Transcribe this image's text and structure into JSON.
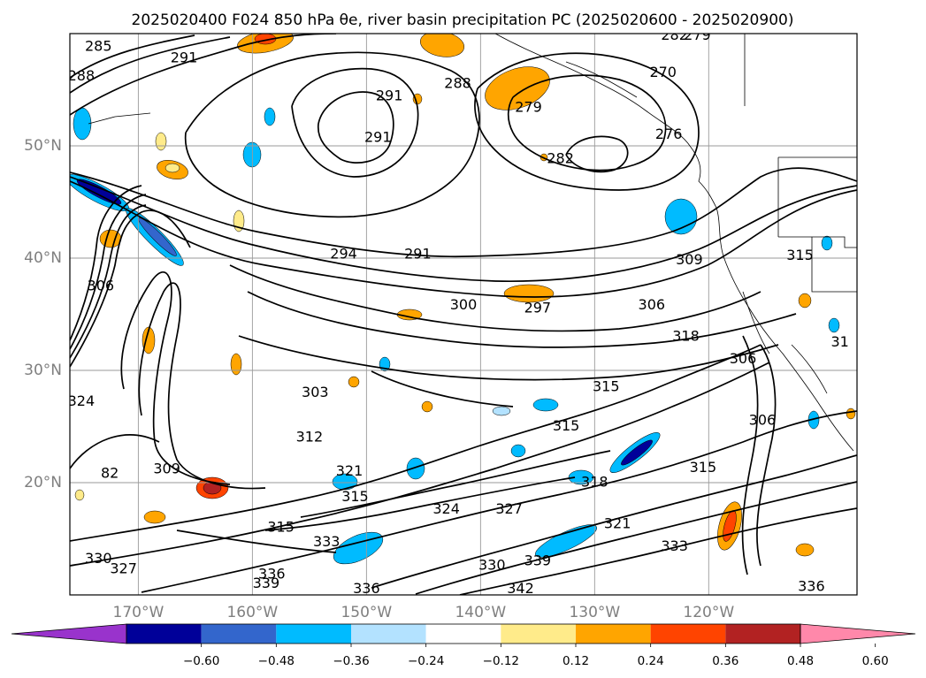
{
  "figure": {
    "title": "2025020400 F024 850 hPa θe, river basin precipitation PC (2025020600 - 2025020900)"
  },
  "chart_data": {
    "type": "contour_map",
    "title": "2025020400 F024 850 hPa θe, river basin precipitation PC (2025020600 - 2025020900)",
    "lat_labels": [
      "20°N",
      "30°N",
      "40°N",
      "50°N"
    ],
    "lon_labels": [
      "170°W",
      "160°W",
      "150°W",
      "140°W",
      "130°W",
      "120°W"
    ],
    "lat_values": [
      20,
      30,
      40,
      50
    ],
    "lon_values": [
      -170,
      -160,
      -150,
      -140,
      -130,
      -120
    ],
    "extent": {
      "lon": [
        -176,
        -107
      ],
      "lat": [
        10,
        60
      ]
    },
    "grid": true,
    "colorbar": {
      "orientation": "horizontal",
      "extend": "both",
      "levels": [
        -0.6,
        -0.48,
        -0.36,
        -0.24,
        -0.12,
        0.12,
        0.24,
        0.36,
        0.48,
        0.6
      ],
      "tick_labels": [
        "−0.60",
        "−0.48",
        "−0.36",
        "−0.24",
        "−0.12",
        "0.12",
        "0.24",
        "0.36",
        "0.48",
        "0.60"
      ],
      "colors": [
        "#9933cc",
        "#000099",
        "#3366cc",
        "#00bbff",
        "#b3e2ff",
        "#ffffff",
        "#ffeb8a",
        "#ffa500",
        "#ff4400",
        "#b22222",
        "#ff88aa"
      ]
    },
    "contour_labels": [
      {
        "text": "285",
        "lon": -173.5,
        "lat": 58.8
      },
      {
        "text": "288",
        "lon": -175.0,
        "lat": 56.2
      },
      {
        "text": "291",
        "lon": -166.0,
        "lat": 57.8
      },
      {
        "text": "291",
        "lon": -148.0,
        "lat": 54.4
      },
      {
        "text": "291",
        "lon": -149.0,
        "lat": 50.7
      },
      {
        "text": "288",
        "lon": -142.0,
        "lat": 55.5
      },
      {
        "text": "279",
        "lon": -135.8,
        "lat": 53.4
      },
      {
        "text": "282",
        "lon": -133.0,
        "lat": 48.8
      },
      {
        "text": "282",
        "lon": -123.0,
        "lat": 59.8
      },
      {
        "text": "279",
        "lon": -121.0,
        "lat": 59.8
      },
      {
        "text": "270",
        "lon": -124.0,
        "lat": 56.5
      },
      {
        "text": "276",
        "lon": -123.5,
        "lat": 51.0
      },
      {
        "text": "294",
        "lon": -152.0,
        "lat": 40.3
      },
      {
        "text": "291",
        "lon": -145.5,
        "lat": 40.3
      },
      {
        "text": "300",
        "lon": -141.5,
        "lat": 35.8
      },
      {
        "text": "297",
        "lon": -135.0,
        "lat": 35.5
      },
      {
        "text": "309",
        "lon": -121.7,
        "lat": 39.8
      },
      {
        "text": "315",
        "lon": -112.0,
        "lat": 40.2
      },
      {
        "text": "306",
        "lon": -125.0,
        "lat": 35.8
      },
      {
        "text": "318",
        "lon": -122.0,
        "lat": 33.0
      },
      {
        "text": "315",
        "lon": -129.0,
        "lat": 28.5
      },
      {
        "text": "31",
        "lon": -108.5,
        "lat": 32.5
      },
      {
        "text": "306",
        "lon": -117.0,
        "lat": 31.0
      },
      {
        "text": "306",
        "lon": -115.3,
        "lat": 25.5
      },
      {
        "text": "306",
        "lon": -173.3,
        "lat": 37.5
      },
      {
        "text": "303",
        "lon": -154.5,
        "lat": 28.0
      },
      {
        "text": "312",
        "lon": -155.0,
        "lat": 24.0
      },
      {
        "text": "309",
        "lon": -167.5,
        "lat": 21.2
      },
      {
        "text": "324",
        "lon": -175.0,
        "lat": 27.2
      },
      {
        "text": "82",
        "lon": -172.5,
        "lat": 20.8
      },
      {
        "text": "321",
        "lon": -151.5,
        "lat": 21.0
      },
      {
        "text": "315",
        "lon": -151.0,
        "lat": 18.7
      },
      {
        "text": "315",
        "lon": -132.5,
        "lat": 25.0
      },
      {
        "text": "318",
        "lon": -130.0,
        "lat": 20.0
      },
      {
        "text": "315",
        "lon": -120.5,
        "lat": 21.3
      },
      {
        "text": "324",
        "lon": -143.0,
        "lat": 17.6
      },
      {
        "text": "327",
        "lon": -137.5,
        "lat": 17.6
      },
      {
        "text": "321",
        "lon": -128.0,
        "lat": 16.3
      },
      {
        "text": "315",
        "lon": -157.5,
        "lat": 16.0
      },
      {
        "text": "333",
        "lon": -153.5,
        "lat": 14.7
      },
      {
        "text": "333",
        "lon": -123.0,
        "lat": 14.3
      },
      {
        "text": "339",
        "lon": -135.0,
        "lat": 13.0
      },
      {
        "text": "330",
        "lon": -139.0,
        "lat": 12.6
      },
      {
        "text": "330",
        "lon": -173.5,
        "lat": 13.2
      },
      {
        "text": "327",
        "lon": -171.3,
        "lat": 12.3
      },
      {
        "text": "336",
        "lon": -158.3,
        "lat": 11.8
      },
      {
        "text": "339",
        "lon": -158.8,
        "lat": 11.0
      },
      {
        "text": "336",
        "lon": -150.0,
        "lat": 10.5
      },
      {
        "text": "342",
        "lon": -136.5,
        "lat": 10.5
      },
      {
        "text": "336",
        "lon": -111.0,
        "lat": 10.7
      }
    ]
  }
}
